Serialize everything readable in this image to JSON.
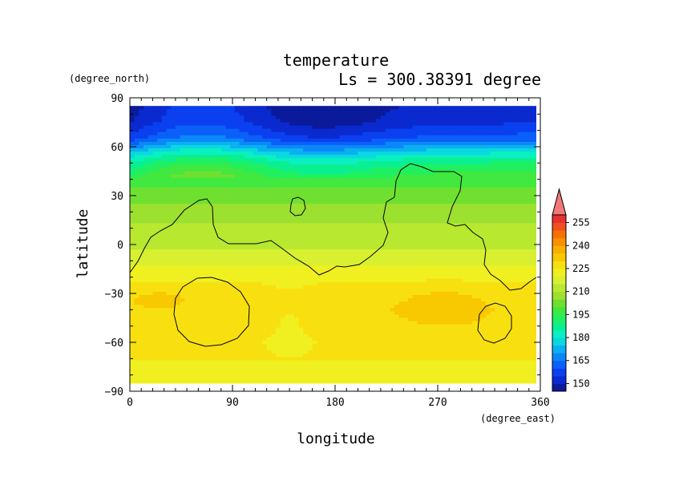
{
  "chart_data": {
    "type": "heatmap",
    "title": "temperature",
    "subtitle": "Ls = 300.38391 degree",
    "xlabel": "longitude",
    "ylabel": "latitude",
    "xunit": "(degree_east)",
    "yunit": "(degree_north)",
    "xlim": [
      0,
      360
    ],
    "ylim": [
      -90,
      90
    ],
    "data_lat_range": [
      -85,
      85
    ],
    "x_ticks": [
      0,
      90,
      180,
      270,
      360
    ],
    "y_ticks": [
      90,
      60,
      30,
      0,
      -30,
      -60,
      -90
    ],
    "x_tick_labels": [
      "0",
      "90",
      "180",
      "270",
      "360"
    ],
    "y_tick_labels": [
      "90",
      "60",
      "30",
      "0",
      "−30",
      "−60",
      "−90"
    ],
    "colorbar": {
      "levels": [
        145,
        150,
        155,
        160,
        165,
        170,
        175,
        180,
        185,
        190,
        195,
        200,
        205,
        210,
        215,
        220,
        225,
        230,
        235,
        240,
        245,
        250,
        255,
        260
      ],
      "tick_labels": [
        "255",
        "240",
        "225",
        "210",
        "195",
        "180",
        "165",
        "150"
      ],
      "colors": [
        "#0a1a9a",
        "#0a2ad0",
        "#0a40f0",
        "#0a60f8",
        "#0a88f8",
        "#0ab0f0",
        "#0ad8e0",
        "#0af0c0",
        "#0af090",
        "#20f060",
        "#40e840",
        "#70e030",
        "#9ce030",
        "#b8e830",
        "#d8f030",
        "#f0f020",
        "#f8e010",
        "#f8c800",
        "#f8b000",
        "#f89000",
        "#f87000",
        "#f05020",
        "#e83030",
        "#f07878"
      ],
      "extend_arrow_color": "#f07878"
    },
    "field_profile": {
      "description_lat": [
        85,
        75,
        65,
        60,
        55,
        50,
        45,
        40,
        35,
        30,
        20,
        10,
        0,
        -10,
        -20,
        -30,
        -40,
        -50,
        -60,
        -70,
        -80,
        -85
      ],
      "zonal_mean_K": [
        150,
        152,
        160,
        170,
        180,
        188,
        193,
        197,
        200,
        203,
        207,
        211,
        214,
        218,
        224,
        227,
        229,
        228,
        226,
        225,
        224,
        224
      ]
    },
    "grid": false,
    "overlay": "coastline contours"
  }
}
